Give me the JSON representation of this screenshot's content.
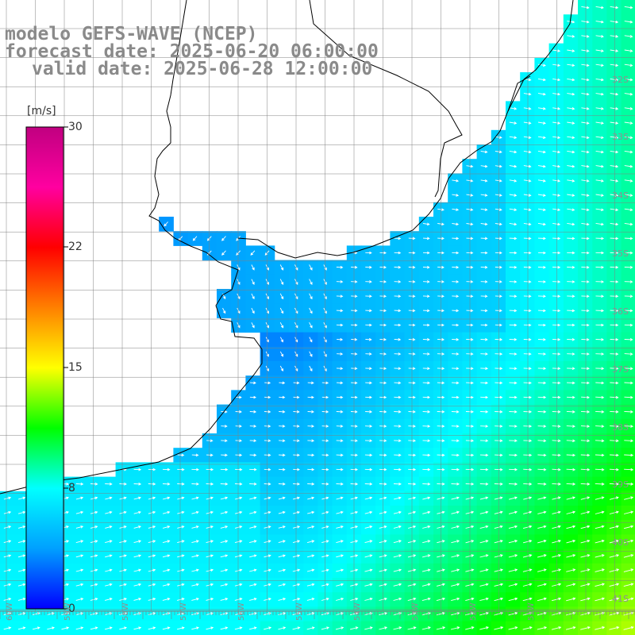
{
  "title": {
    "line1": "modelo GEFS-WAVE (NCEP)",
    "line2": "forecast date: 2025-06-20 06:00:00",
    "line3": "valid date: 2025-06-28 12:00:00"
  },
  "colorbar": {
    "unit": "[m/s]",
    "ticks": [
      "30",
      "22",
      "15",
      "8",
      "0"
    ],
    "colors": [
      "#0000ff",
      "#00a0ff",
      "#00ffff",
      "#00ff00",
      "#ffff00",
      "#ff8000",
      "#ff0000",
      "#ff00a0",
      "#c00080"
    ]
  },
  "latitude_labels": [
    "32S",
    "33S",
    "34S",
    "35S",
    "36S",
    "37S",
    "38S",
    "39S",
    "40S",
    "41S"
  ],
  "longitude_labels": [
    "60W",
    "59W",
    "58W",
    "57W",
    "56W",
    "55W",
    "54W",
    "53W",
    "52W",
    "51W"
  ],
  "map_colors": {
    "land": "#ffffff",
    "coast": "#000000",
    "grid": "#808080",
    "arrow": "#ffffff"
  }
}
